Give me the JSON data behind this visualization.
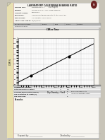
{
  "bg_color": "#c8c4b8",
  "paper_color": "#f0ede6",
  "doc_color": "#f7f5f0",
  "title": "LABORATORY CALIFORNIA BEARING RATIO",
  "subtitle": "Test Report",
  "header_fields": [
    [
      "ROUTE NO.",
      "EXPRESSWAY A"
    ],
    [
      "CLIENT",
      "FCCMX FYYYYY INC. Main Division"
    ],
    [
      "Project CODE",
      "20200200"
    ],
    [
      "LOCATION",
      "Component Base Results At Sta. 012+00"
    ],
    [
      "ELEVATION",
      "1.5, Depth: 000-0.45 m"
    ],
    [
      "TESTS ON FIELD",
      "15/06/2010"
    ]
  ],
  "graph": {
    "data_x": [
      1750,
      2500
    ],
    "data_y": [
      55,
      130
    ],
    "xlim": [
      1500,
      3000
    ],
    "ylim": [
      20,
      200
    ],
    "xlabel": "Dry Density - t/m3",
    "ylabel": "CBR %",
    "xticks": [
      1500,
      1750,
      2000,
      2250,
      2500,
      2750,
      3000
    ],
    "yticks": [
      20,
      40,
      60,
      80,
      100,
      120,
      140,
      160,
      180,
      200
    ]
  },
  "bottom_table": {
    "rows": [
      [
        "Maximum Dry Density",
        "t/m3",
        "1.850",
        ""
      ],
      [
        "Optimum Moisture Content",
        "%",
        "13.5",
        ""
      ],
      [
        "California Bearing Ratio (soaked)",
        "t",
        "88",
        "86-90 from CBR results"
      ],
      [
        "CBR penetration at 2.5mm [%]",
        "",
        "5",
        "Averaged penetration result"
      ],
      [
        "CBR value used",
        "",
        "88",
        ""
      ]
    ]
  },
  "fold_color": "#d8d4c0",
  "logo_color": "#6b2222"
}
